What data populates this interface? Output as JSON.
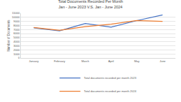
{
  "chart_data": {
    "type": "line",
    "title": "Total Documents Recorded Per Month",
    "subtitle": "Jan - June 2023 V.S. Jan - June 2024",
    "y_label": "Number of Documents",
    "categories": [
      "January",
      "February",
      "March",
      "April",
      "May",
      "June"
    ],
    "series": [
      {
        "name": "Total documents recorded per month 2023",
        "color": "#4472c4",
        "values": [
          7400,
          6700,
          8500,
          7600,
          9200,
          10600
        ]
      },
      {
        "name": "Total documents recorded per month 2024",
        "color": "#ed7d31",
        "values": [
          7500,
          6800,
          7700,
          8300,
          9200,
          9000
        ]
      }
    ],
    "ylim": [
      0,
      11000
    ],
    "yticks": [
      0,
      1000,
      2000,
      3000,
      4000,
      5000,
      6000,
      7000,
      8000,
      9000,
      10000,
      11000
    ],
    "grid": true,
    "legend": "bottom"
  }
}
